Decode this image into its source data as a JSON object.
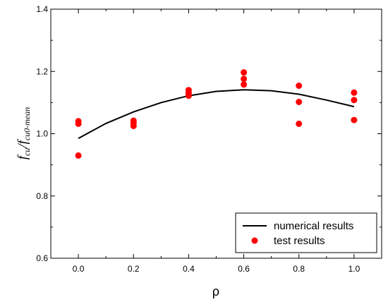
{
  "chart_data": {
    "type": "scatter",
    "xlabel": "ρ",
    "ylabel": {
      "main": "f",
      "sub1": "cu",
      "sep": "/",
      "main2": "f",
      "sub2": "cu0-mean"
    },
    "xlim": [
      -0.1,
      1.1
    ],
    "ylim": [
      0.6,
      1.4
    ],
    "xticks": [
      "0.0",
      "0.2",
      "0.4",
      "0.6",
      "0.8",
      "1.0"
    ],
    "yticks": [
      "0.6",
      "0.8",
      "1.0",
      "1.2",
      "1.4"
    ],
    "xtick_values": [
      0.0,
      0.2,
      0.4,
      0.6,
      0.8,
      1.0
    ],
    "ytick_values": [
      0.6,
      0.8,
      1.0,
      1.2,
      1.4
    ],
    "grid": false,
    "legend_position": "bottom-right",
    "series": [
      {
        "name": "numerical results",
        "kind": "line",
        "color": "#000000",
        "x": [
          0.0,
          0.1,
          0.2,
          0.3,
          0.4,
          0.5,
          0.6,
          0.7,
          0.8,
          0.9,
          1.0
        ],
        "y": [
          0.985,
          1.033,
          1.07,
          1.1,
          1.122,
          1.136,
          1.141,
          1.138,
          1.127,
          1.108,
          1.087
        ]
      },
      {
        "name": "test results",
        "kind": "scatter",
        "color": "#ff0000",
        "x": [
          0.0,
          0.0,
          0.0,
          0.2,
          0.2,
          0.2,
          0.4,
          0.4,
          0.4,
          0.6,
          0.6,
          0.6,
          0.8,
          0.8,
          0.8,
          1.0,
          1.0,
          1.0
        ],
        "y": [
          1.04,
          1.032,
          0.93,
          1.042,
          1.035,
          1.025,
          1.14,
          1.13,
          1.122,
          1.197,
          1.176,
          1.158,
          1.154,
          1.102,
          1.032,
          1.132,
          1.108,
          1.044
        ]
      }
    ]
  }
}
